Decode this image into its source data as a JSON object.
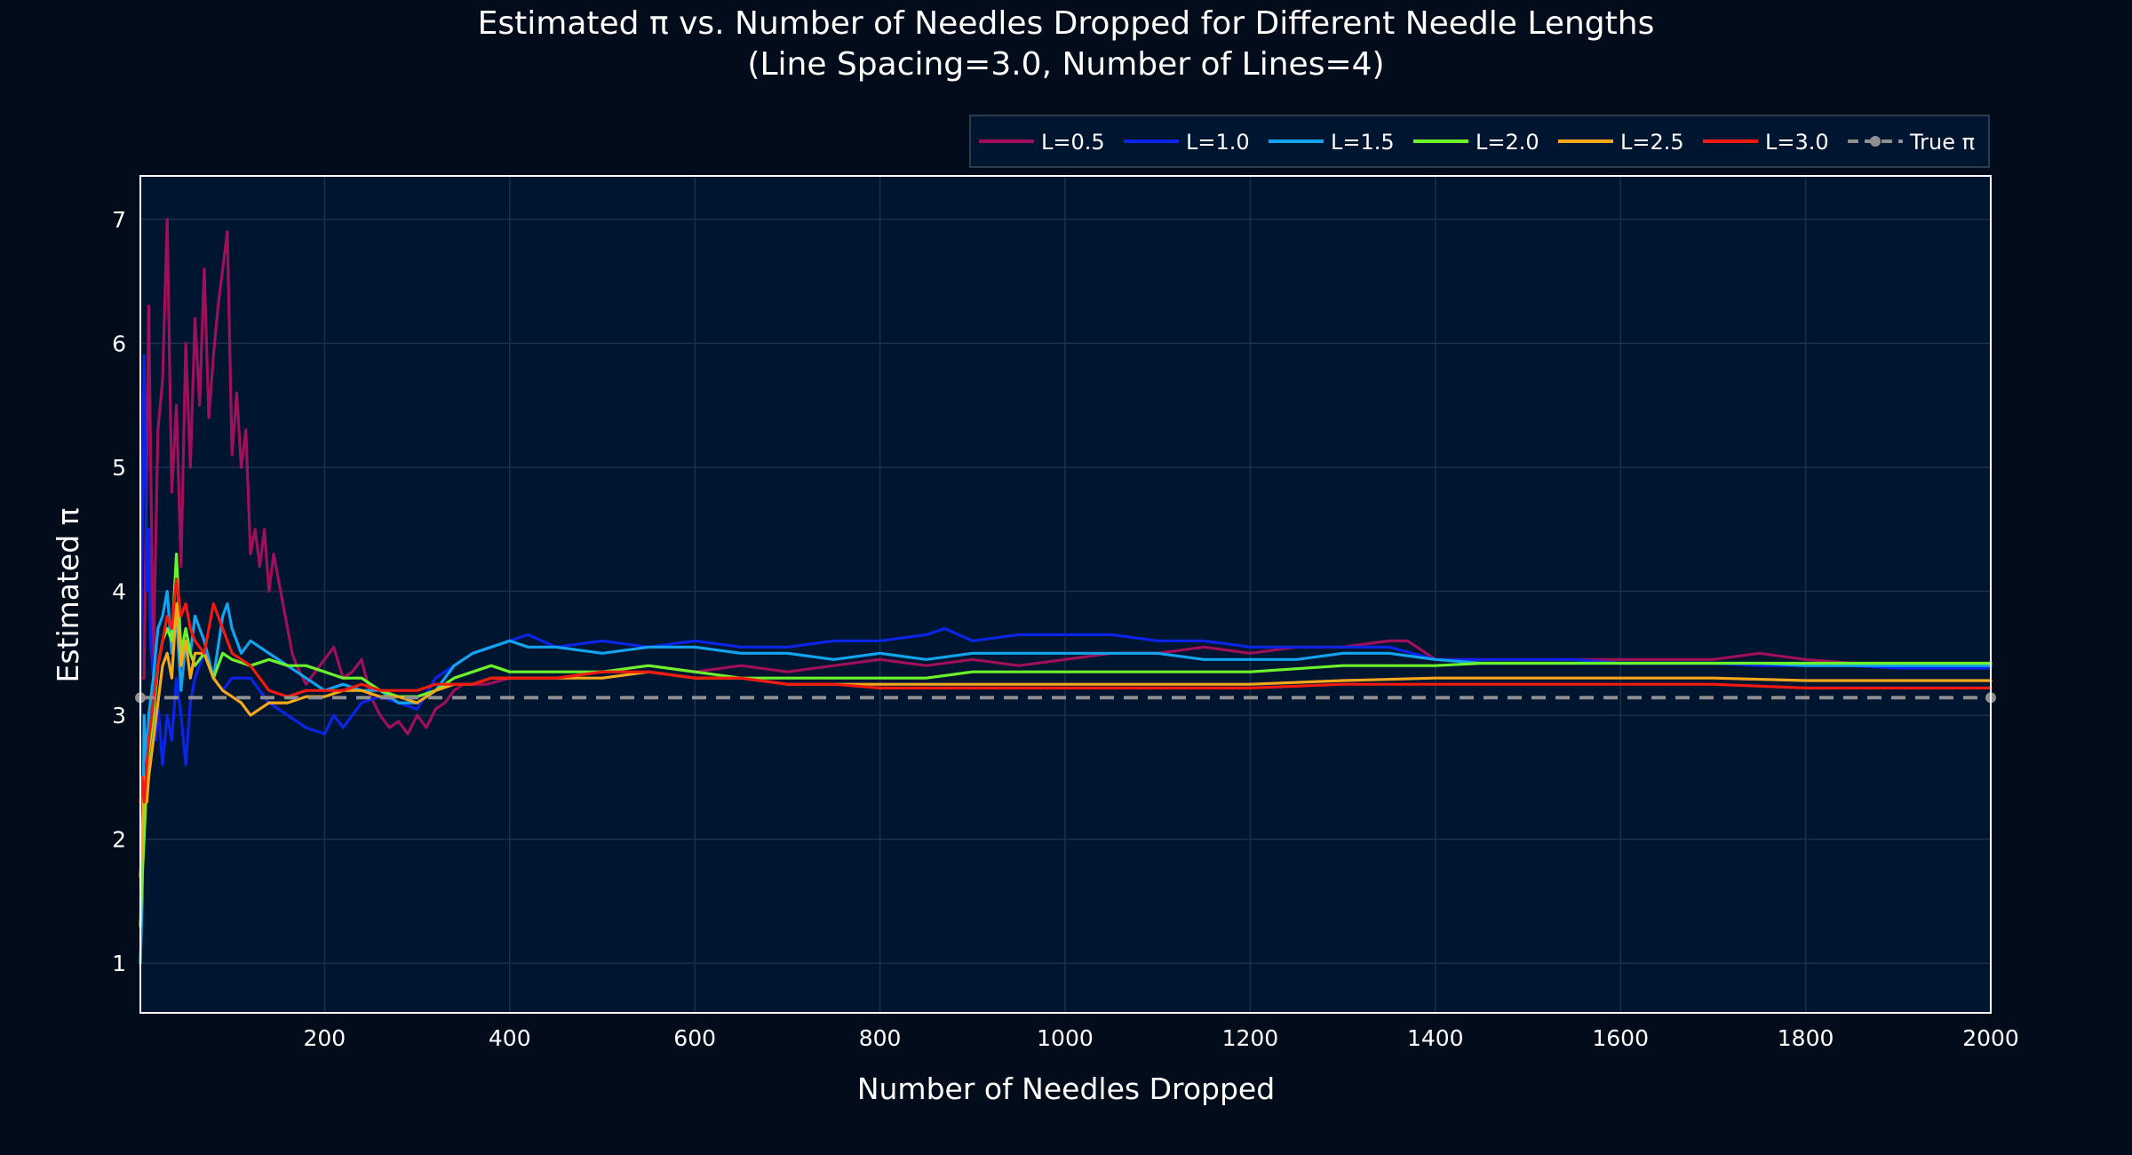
{
  "chart_data": {
    "type": "line",
    "title": "Estimated π vs. Number of Needles Dropped for Different Needle Lengths",
    "subtitle": "(Line Spacing=3.0, Number of Lines=4)",
    "xlabel": "Number of Needles Dropped",
    "ylabel": "Estimated π",
    "xlim": [
      1,
      2000
    ],
    "ylim": [
      0.6,
      7.35
    ],
    "x_ticks": [
      200,
      400,
      600,
      800,
      1000,
      1200,
      1400,
      1600,
      1800,
      2000
    ],
    "y_ticks": [
      1,
      2,
      3,
      4,
      5,
      6,
      7
    ],
    "grid": true,
    "legend_placement": "top-right, horizontal, above plot",
    "colors": {
      "background": "#020c1b",
      "plot_background": "#001530",
      "grid": "#1e3048"
    },
    "series": [
      {
        "name": "L=0.5",
        "color": "#a0105a",
        "x": [
          1,
          5,
          10,
          15,
          20,
          25,
          30,
          35,
          40,
          45,
          50,
          55,
          60,
          65,
          70,
          75,
          80,
          85,
          90,
          95,
          100,
          105,
          110,
          115,
          120,
          125,
          130,
          135,
          140,
          145,
          150,
          155,
          160,
          165,
          170,
          180,
          190,
          200,
          210,
          220,
          230,
          240,
          250,
          260,
          270,
          280,
          290,
          300,
          310,
          320,
          330,
          340,
          350,
          375,
          400,
          450,
          500,
          550,
          600,
          650,
          700,
          750,
          800,
          850,
          900,
          950,
          1000,
          1050,
          1100,
          1150,
          1200,
          1250,
          1300,
          1350,
          1370,
          1390,
          1400,
          1450,
          1500,
          1550,
          1600,
          1650,
          1700,
          1750,
          1800,
          1850,
          1900,
          1950,
          2000
        ],
        "values": [
          3.3,
          3.3,
          6.3,
          3.4,
          5.3,
          5.7,
          7.0,
          4.8,
          5.5,
          4.2,
          6.0,
          5.0,
          6.2,
          5.5,
          6.6,
          5.4,
          5.9,
          6.3,
          6.6,
          6.9,
          5.1,
          5.6,
          5.0,
          5.3,
          4.3,
          4.5,
          4.2,
          4.5,
          4.0,
          4.3,
          4.1,
          3.9,
          3.7,
          3.5,
          3.4,
          3.25,
          3.35,
          3.45,
          3.55,
          3.3,
          3.35,
          3.45,
          3.15,
          3.0,
          2.9,
          2.95,
          2.85,
          3.0,
          2.9,
          3.05,
          3.1,
          3.2,
          3.25,
          3.25,
          3.3,
          3.3,
          3.35,
          3.4,
          3.35,
          3.4,
          3.35,
          3.4,
          3.45,
          3.4,
          3.45,
          3.4,
          3.45,
          3.5,
          3.5,
          3.55,
          3.5,
          3.55,
          3.55,
          3.6,
          3.6,
          3.5,
          3.45,
          3.45,
          3.45,
          3.45,
          3.45,
          3.45,
          3.45,
          3.5,
          3.45,
          3.42,
          3.42,
          3.42,
          3.42
        ]
      },
      {
        "name": "L=1.0",
        "color": "#0a24e8",
        "x": [
          1,
          3,
          5,
          8,
          10,
          12,
          15,
          18,
          20,
          25,
          30,
          35,
          40,
          45,
          50,
          55,
          60,
          70,
          80,
          90,
          100,
          120,
          140,
          160,
          180,
          200,
          210,
          220,
          240,
          260,
          280,
          300,
          320,
          340,
          360,
          380,
          400,
          420,
          450,
          500,
          550,
          600,
          650,
          700,
          750,
          800,
          850,
          870,
          900,
          950,
          1000,
          1050,
          1100,
          1150,
          1200,
          1250,
          1300,
          1350,
          1400,
          1450,
          1500,
          1550,
          1600,
          1650,
          1700,
          1750,
          1800,
          1850,
          1900,
          1950,
          2000
        ],
        "values": [
          3.0,
          4.5,
          5.9,
          4.0,
          4.5,
          3.6,
          3.3,
          2.8,
          3.1,
          2.6,
          3.0,
          2.8,
          3.3,
          3.0,
          2.6,
          3.1,
          3.3,
          3.5,
          3.3,
          3.2,
          3.3,
          3.3,
          3.1,
          3.0,
          2.9,
          2.85,
          3.0,
          2.9,
          3.1,
          3.15,
          3.1,
          3.05,
          3.3,
          3.4,
          3.5,
          3.55,
          3.6,
          3.65,
          3.55,
          3.6,
          3.55,
          3.6,
          3.55,
          3.55,
          3.6,
          3.6,
          3.65,
          3.7,
          3.6,
          3.65,
          3.65,
          3.65,
          3.6,
          3.6,
          3.55,
          3.55,
          3.55,
          3.55,
          3.45,
          3.45,
          3.45,
          3.45,
          3.42,
          3.42,
          3.42,
          3.4,
          3.4,
          3.4,
          3.38,
          3.38,
          3.38
        ]
      },
      {
        "name": "L=1.5",
        "color": "#12a4ee",
        "x": [
          1,
          3,
          5,
          8,
          10,
          15,
          20,
          25,
          30,
          35,
          40,
          45,
          50,
          55,
          60,
          70,
          80,
          90,
          95,
          100,
          110,
          120,
          140,
          160,
          180,
          200,
          220,
          240,
          260,
          280,
          300,
          320,
          340,
          360,
          380,
          400,
          420,
          450,
          500,
          550,
          600,
          650,
          700,
          750,
          800,
          850,
          900,
          950,
          1000,
          1050,
          1100,
          1150,
          1200,
          1250,
          1300,
          1350,
          1400,
          1450,
          1500,
          1550,
          1600,
          1650,
          1700,
          1750,
          1800,
          1850,
          1900,
          1950,
          2000
        ],
        "values": [
          1.0,
          1.5,
          3.0,
          2.6,
          3.0,
          3.3,
          3.7,
          3.8,
          4.0,
          3.5,
          3.8,
          3.2,
          3.6,
          3.5,
          3.8,
          3.6,
          3.3,
          3.8,
          3.9,
          3.7,
          3.5,
          3.6,
          3.5,
          3.4,
          3.3,
          3.2,
          3.25,
          3.2,
          3.2,
          3.1,
          3.1,
          3.2,
          3.4,
          3.5,
          3.55,
          3.6,
          3.55,
          3.55,
          3.5,
          3.55,
          3.55,
          3.5,
          3.5,
          3.45,
          3.5,
          3.45,
          3.5,
          3.5,
          3.5,
          3.5,
          3.5,
          3.45,
          3.45,
          3.45,
          3.5,
          3.5,
          3.45,
          3.42,
          3.42,
          3.42,
          3.42,
          3.42,
          3.42,
          3.42,
          3.4,
          3.4,
          3.4,
          3.4,
          3.4
        ]
      },
      {
        "name": "L=2.0",
        "color": "#6cf42b",
        "x": [
          1,
          3,
          5,
          8,
          10,
          15,
          20,
          25,
          30,
          35,
          40,
          45,
          50,
          55,
          60,
          70,
          80,
          90,
          100,
          120,
          140,
          160,
          180,
          200,
          220,
          240,
          260,
          280,
          300,
          320,
          340,
          360,
          380,
          400,
          450,
          500,
          550,
          600,
          650,
          700,
          750,
          800,
          850,
          900,
          950,
          1000,
          1100,
          1200,
          1300,
          1350,
          1400,
          1450,
          1500,
          1600,
          1700,
          1800,
          1900,
          2000
        ],
        "values": [
          1.3,
          1.7,
          2.0,
          2.5,
          2.7,
          3.0,
          3.4,
          3.6,
          3.7,
          3.6,
          4.3,
          3.5,
          3.7,
          3.5,
          3.4,
          3.5,
          3.3,
          3.5,
          3.45,
          3.4,
          3.45,
          3.4,
          3.4,
          3.35,
          3.3,
          3.3,
          3.2,
          3.15,
          3.15,
          3.2,
          3.3,
          3.35,
          3.4,
          3.35,
          3.35,
          3.35,
          3.4,
          3.35,
          3.3,
          3.3,
          3.3,
          3.3,
          3.3,
          3.35,
          3.35,
          3.35,
          3.35,
          3.35,
          3.4,
          3.4,
          3.4,
          3.42,
          3.42,
          3.42,
          3.42,
          3.42,
          3.42,
          3.42
        ]
      },
      {
        "name": "L=2.5",
        "color": "#f5a81c",
        "x": [
          1,
          3,
          5,
          8,
          10,
          15,
          20,
          25,
          30,
          35,
          40,
          45,
          50,
          55,
          60,
          70,
          80,
          90,
          100,
          110,
          120,
          130,
          140,
          160,
          180,
          200,
          220,
          240,
          260,
          280,
          300,
          320,
          340,
          360,
          380,
          400,
          450,
          500,
          550,
          600,
          650,
          700,
          750,
          800,
          900,
          1000,
          1100,
          1200,
          1300,
          1400,
          1500,
          1600,
          1700,
          1800,
          1900,
          2000
        ],
        "values": [
          1.7,
          2.0,
          2.5,
          2.3,
          2.5,
          2.8,
          3.1,
          3.4,
          3.5,
          3.3,
          3.9,
          3.4,
          3.6,
          3.3,
          3.5,
          3.5,
          3.3,
          3.2,
          3.15,
          3.1,
          3.0,
          3.05,
          3.1,
          3.1,
          3.15,
          3.15,
          3.2,
          3.2,
          3.15,
          3.15,
          3.1,
          3.2,
          3.25,
          3.25,
          3.3,
          3.3,
          3.3,
          3.3,
          3.35,
          3.3,
          3.3,
          3.25,
          3.25,
          3.25,
          3.25,
          3.25,
          3.25,
          3.25,
          3.28,
          3.3,
          3.3,
          3.3,
          3.3,
          3.28,
          3.28,
          3.28
        ]
      },
      {
        "name": "L=3.0",
        "color": "#f21a0e",
        "x": [
          1,
          3,
          5,
          8,
          10,
          15,
          20,
          25,
          30,
          35,
          40,
          45,
          50,
          55,
          60,
          70,
          80,
          90,
          100,
          120,
          140,
          160,
          180,
          200,
          220,
          240,
          260,
          280,
          300,
          320,
          340,
          360,
          380,
          400,
          450,
          500,
          550,
          600,
          650,
          700,
          750,
          800,
          900,
          1000,
          1100,
          1200,
          1300,
          1400,
          1500,
          1600,
          1700,
          1800,
          1900,
          2000
        ],
        "values": [
          2.3,
          2.5,
          2.3,
          2.6,
          2.8,
          3.1,
          3.4,
          3.6,
          3.8,
          3.7,
          4.1,
          3.8,
          3.9,
          3.7,
          3.6,
          3.5,
          3.9,
          3.7,
          3.5,
          3.4,
          3.2,
          3.15,
          3.2,
          3.2,
          3.2,
          3.25,
          3.2,
          3.2,
          3.2,
          3.25,
          3.25,
          3.25,
          3.3,
          3.3,
          3.3,
          3.35,
          3.35,
          3.3,
          3.3,
          3.25,
          3.25,
          3.22,
          3.22,
          3.22,
          3.22,
          3.22,
          3.25,
          3.25,
          3.25,
          3.25,
          3.25,
          3.22,
          3.22,
          3.22
        ]
      },
      {
        "name": "True π",
        "color": "#8f8f8f",
        "dash": true,
        "x": [
          1,
          2000
        ],
        "values": [
          3.14159,
          3.14159
        ]
      }
    ]
  }
}
